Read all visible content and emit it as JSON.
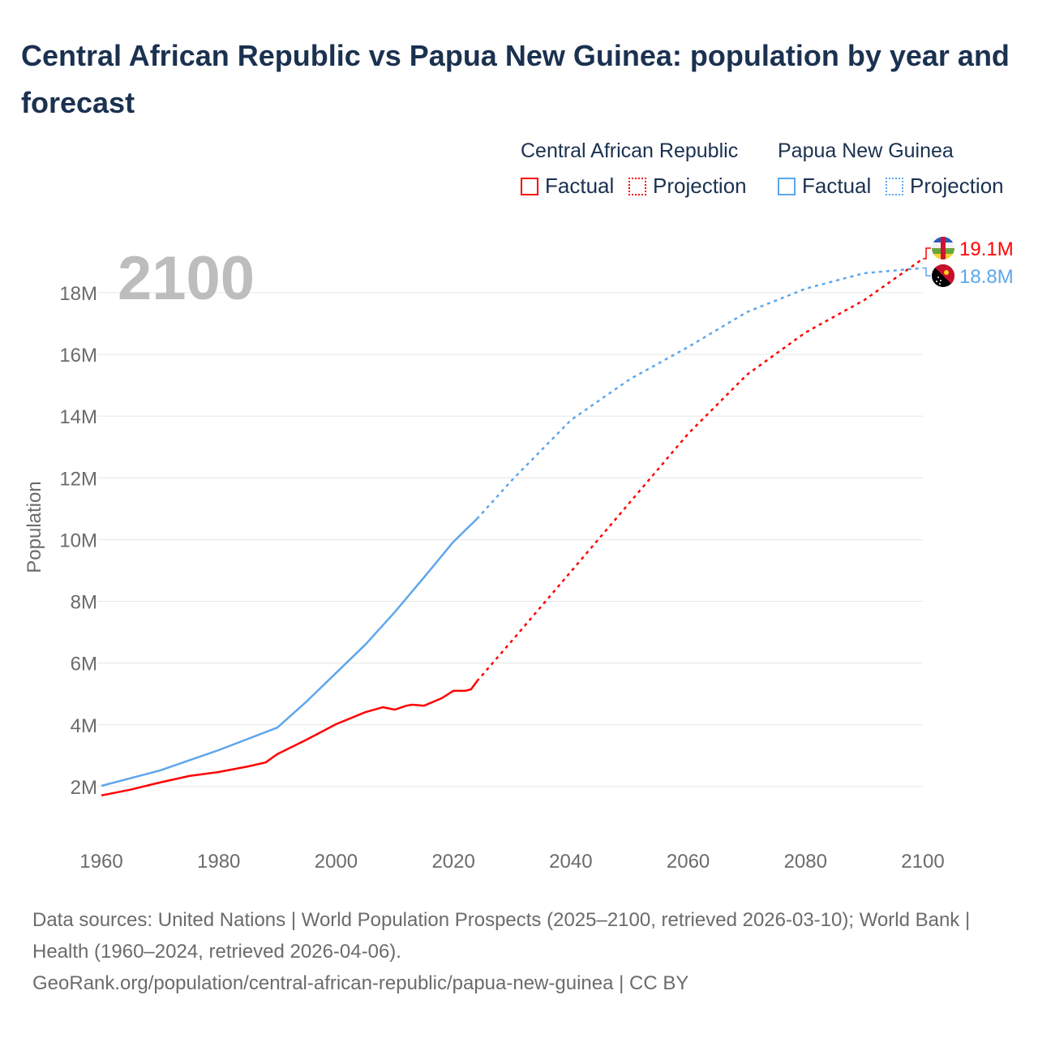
{
  "chart_data": {
    "type": "line",
    "title": "Central African Republic vs Papua New Guinea: population by year and forecast",
    "ylabel": "Population",
    "xlabel": "",
    "xlim": [
      1960,
      2100
    ],
    "ylim": [
      0,
      19.5
    ],
    "x_ticks": [
      "1960",
      "1980",
      "2000",
      "2020",
      "2040",
      "2060",
      "2080",
      "2100"
    ],
    "x_tick_values": [
      1960,
      1980,
      2000,
      2020,
      2040,
      2060,
      2080,
      2100
    ],
    "y_ticks": [
      "2M",
      "4M",
      "6M",
      "8M",
      "10M",
      "12M",
      "14M",
      "16M",
      "18M"
    ],
    "y_tick_values": [
      2,
      4,
      6,
      8,
      10,
      12,
      14,
      16,
      18
    ],
    "units": "millions",
    "current_year_label": "2100",
    "legend_groups": [
      {
        "name": "Central African Republic",
        "factual": "Factual",
        "projection": "Projection",
        "color": "#ff0000"
      },
      {
        "name": "Papua New Guinea",
        "factual": "Factual",
        "projection": "Projection",
        "color": "#5ea6ec"
      }
    ],
    "series": [
      {
        "name": "Central African Republic",
        "kind": "factual",
        "color": "#ff0000",
        "x": [
          1960,
          1965,
          1970,
          1975,
          1980,
          1985,
          1988,
          1990,
          1995,
          2000,
          2005,
          2008,
          2010,
          2012,
          2013,
          2015,
          2018,
          2020,
          2022,
          2023,
          2024
        ],
        "y": [
          1.71,
          1.9,
          2.13,
          2.34,
          2.47,
          2.65,
          2.78,
          3.05,
          3.52,
          4.02,
          4.41,
          4.57,
          4.49,
          4.62,
          4.65,
          4.62,
          4.86,
          5.1,
          5.1,
          5.15,
          5.41
        ]
      },
      {
        "name": "Central African Republic",
        "kind": "projection",
        "color": "#ff0000",
        "x": [
          2024,
          2030,
          2040,
          2050,
          2060,
          2070,
          2080,
          2090,
          2100
        ],
        "y": [
          5.41,
          6.73,
          8.96,
          11.19,
          13.43,
          15.34,
          16.71,
          17.76,
          19.1
        ]
      },
      {
        "name": "Papua New Guinea",
        "kind": "factual",
        "color": "#5ea6ec",
        "x": [
          1960,
          1970,
          1980,
          1990,
          1995,
          2000,
          2005,
          2010,
          2015,
          2020,
          2024
        ],
        "y": [
          2.02,
          2.52,
          3.18,
          3.91,
          4.76,
          5.68,
          6.6,
          7.65,
          8.78,
          9.93,
          10.67
        ]
      },
      {
        "name": "Papua New Guinea",
        "kind": "projection",
        "color": "#5ea6ec",
        "x": [
          2024,
          2030,
          2040,
          2050,
          2060,
          2070,
          2080,
          2090,
          2100
        ],
        "y": [
          10.67,
          11.93,
          13.87,
          15.19,
          16.24,
          17.37,
          18.13,
          18.63,
          18.8
        ]
      }
    ],
    "end_labels": [
      {
        "country": "Central African Republic",
        "label": "19.1M",
        "color": "#ff0000"
      },
      {
        "country": "Papua New Guinea",
        "label": "18.8M",
        "color": "#5ea6ec"
      }
    ]
  },
  "footer": {
    "line1": "Data sources: United Nations | World Population Prospects (2025–2100, retrieved 2026-03-10); World Bank | Health (1960–2024, retrieved 2026-04-06).",
    "line2": "GeoRank.org/population/central-african-republic/papua-new-guinea | CC BY"
  }
}
